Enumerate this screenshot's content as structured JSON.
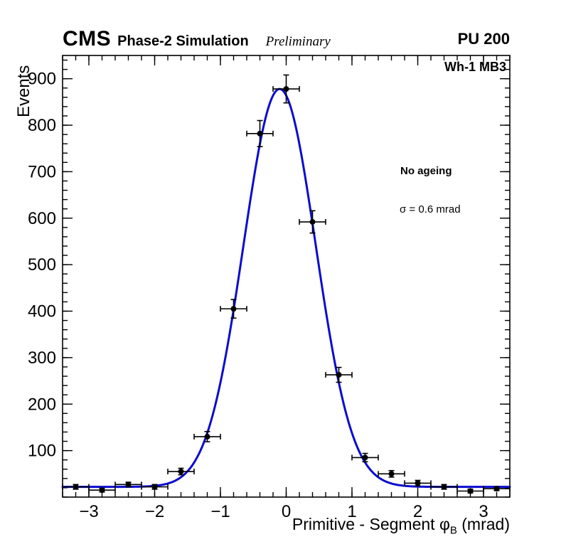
{
  "header": {
    "cms": "CMS",
    "phase": "Phase-2 Simulation",
    "preliminary": "Preliminary",
    "pu": "PU 200"
  },
  "annotations": {
    "region": "Wh-1 MB3",
    "ageing": "No ageing",
    "sigma": "σ = 0.6 mrad"
  },
  "axes": {
    "y_label": "Events",
    "x_label_main": "Primitive - Segment ",
    "x_label_phi": "φ",
    "x_label_sub": "B",
    "x_label_unit": " (mrad)"
  },
  "chart_data": {
    "type": "scatter",
    "title": "",
    "xlabel": "Primitive - Segment phi_B (mrad)",
    "ylabel": "Events",
    "xlim": [
      -3.4,
      3.4
    ],
    "ylim": [
      0,
      950
    ],
    "grid": false,
    "legend": null,
    "x_ticks": [
      -3,
      -2,
      -1,
      0,
      1,
      2,
      3
    ],
    "x_tick_labels": [
      "−3",
      "−2",
      "−1",
      "0",
      "1",
      "2",
      "3"
    ],
    "y_ticks": [
      100,
      200,
      300,
      400,
      500,
      600,
      700,
      800,
      900
    ],
    "y_tick_labels": [
      "100",
      "200",
      "300",
      "400",
      "500",
      "600",
      "700",
      "800",
      "900"
    ],
    "x_minor_step": 0.2,
    "y_minor_step": 20,
    "bin_half_width": 0.2,
    "points": [
      {
        "x": -3.2,
        "y": 22,
        "yerr": 5
      },
      {
        "x": -2.8,
        "y": 15,
        "yerr": 4
      },
      {
        "x": -2.4,
        "y": 27,
        "yerr": 5
      },
      {
        "x": -2.0,
        "y": 22,
        "yerr": 5
      },
      {
        "x": -1.6,
        "y": 55,
        "yerr": 7
      },
      {
        "x": -1.2,
        "y": 130,
        "yerr": 11
      },
      {
        "x": -0.8,
        "y": 405,
        "yerr": 20
      },
      {
        "x": -0.4,
        "y": 782,
        "yerr": 28
      },
      {
        "x": 0.0,
        "y": 878,
        "yerr": 30
      },
      {
        "x": 0.4,
        "y": 592,
        "yerr": 24
      },
      {
        "x": 0.8,
        "y": 263,
        "yerr": 16
      },
      {
        "x": 1.2,
        "y": 85,
        "yerr": 9
      },
      {
        "x": 1.6,
        "y": 50,
        "yerr": 7
      },
      {
        "x": 2.0,
        "y": 30,
        "yerr": 6
      },
      {
        "x": 2.4,
        "y": 22,
        "yerr": 5
      },
      {
        "x": 2.8,
        "y": 13,
        "yerr": 4
      },
      {
        "x": 3.2,
        "y": 18,
        "yerr": 4
      }
    ],
    "fit": {
      "shape": "gaussian_plus_constant",
      "amplitude": 856,
      "mean": -0.1,
      "sigma": 0.55,
      "baseline": 22,
      "color": "#0b0bd1",
      "line_width": 3
    },
    "marker": {
      "color": "#000000",
      "size": 4
    }
  }
}
